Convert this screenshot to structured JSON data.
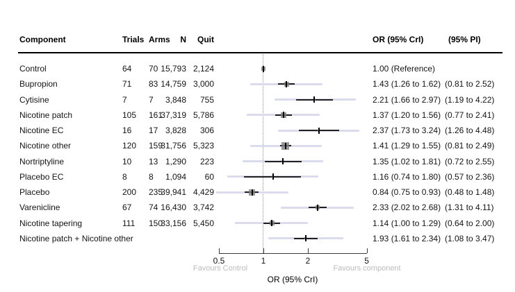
{
  "table": {
    "headers": {
      "component": "Component",
      "trials": "Trials",
      "arms": "Arms",
      "n": "N",
      "quit": "Quit",
      "or": "OR (95% CrI)",
      "pi": "(95% PI)"
    }
  },
  "chart_data": {
    "type": "forest",
    "x_scale": "log",
    "x_ticks": [
      0.5,
      1,
      2,
      5
    ],
    "reference_line": 1,
    "xlabel": "OR (95% CrI)",
    "favours_left": "Favours Control",
    "favours_right": "Favours component",
    "rows": [
      {
        "component": "Control",
        "trials": "64",
        "arms": "70",
        "n": "15,793",
        "quit": "2,124",
        "or_text": "1.00 (Reference)",
        "pi_text": "",
        "or": 1.0,
        "ref": true,
        "marker_size": 6
      },
      {
        "component": "Bupropion",
        "trials": "71",
        "arms": "83",
        "n": "14,759",
        "quit": "3,000",
        "or_text": "1.43 (1.26 to 1.62)",
        "pi_text": "(0.81 to 2.52)",
        "or": 1.43,
        "cri": [
          1.26,
          1.62
        ],
        "pi": [
          0.81,
          2.52
        ],
        "marker_size": 7
      },
      {
        "component": "Cytisine",
        "trials": "7",
        "arms": "7",
        "n": "3,848",
        "quit": "755",
        "or_text": "2.21 (1.66 to 2.97)",
        "pi_text": "(1.19 to 4.22)",
        "or": 2.21,
        "cri": [
          1.66,
          2.97
        ],
        "pi": [
          1.19,
          4.22
        ],
        "marker_size": 3
      },
      {
        "component": "Nicotine patch",
        "trials": "105",
        "arms": "161",
        "n": "37,319",
        "quit": "5,786",
        "or_text": "1.37 (1.20 to 1.56)",
        "pi_text": "(0.77 to 2.41)",
        "or": 1.37,
        "cri": [
          1.2,
          1.56
        ],
        "pi": [
          0.77,
          2.41
        ],
        "marker_size": 8
      },
      {
        "component": "Nicotine EC",
        "trials": "16",
        "arms": "17",
        "n": "3,828",
        "quit": "306",
        "or_text": "2.37 (1.73 to 3.24)",
        "pi_text": "(1.26 to 4.48)",
        "or": 2.37,
        "cri": [
          1.73,
          3.24
        ],
        "pi": [
          1.26,
          4.48
        ],
        "marker_size": 3
      },
      {
        "component": "Nicotine other",
        "trials": "120",
        "arms": "159",
        "n": "31,756",
        "quit": "5,323",
        "or_text": "1.41 (1.29 to 1.55)",
        "pi_text": "(0.81 to 2.49)",
        "or": 1.41,
        "cri": [
          1.29,
          1.55
        ],
        "pi": [
          0.81,
          2.49
        ],
        "marker_size": 11
      },
      {
        "component": "Nortriptyline",
        "trials": "10",
        "arms": "13",
        "n": "1,290",
        "quit": "223",
        "or_text": "1.35 (1.02 to 1.81)",
        "pi_text": "(0.72 to 2.55)",
        "or": 1.35,
        "cri": [
          1.02,
          1.81
        ],
        "pi": [
          0.72,
          2.55
        ],
        "marker_size": 3
      },
      {
        "component": "Placebo EC",
        "trials": "8",
        "arms": "8",
        "n": "1,094",
        "quit": "60",
        "or_text": "1.16 (0.74 to 1.80)",
        "pi_text": "(0.57 to 2.36)",
        "or": 1.16,
        "cri": [
          0.74,
          1.8
        ],
        "pi": [
          0.57,
          2.36
        ],
        "marker_size": 3
      },
      {
        "component": "Placebo",
        "trials": "200",
        "arms": "235",
        "n": "39,941",
        "quit": "4,429",
        "or_text": "0.84 (0.75 to 0.93)",
        "pi_text": "(0.48 to 1.48)",
        "or": 0.84,
        "cri": [
          0.75,
          0.93
        ],
        "pi": [
          0.48,
          1.48
        ],
        "marker_size": 9
      },
      {
        "component": "Varenicline",
        "trials": "67",
        "arms": "74",
        "n": "16,430",
        "quit": "3,742",
        "or_text": "2.33 (2.02 to 2.68)",
        "pi_text": "(1.31 to 4.11)",
        "or": 2.33,
        "cri": [
          2.02,
          2.68
        ],
        "pi": [
          1.31,
          4.11
        ],
        "marker_size": 6
      },
      {
        "component": "Nicotine tapering",
        "trials": "111",
        "arms": "150",
        "n": "33,156",
        "quit": "5,450",
        "or_text": "1.14 (1.00 to 1.29)",
        "pi_text": "(0.64 to 2.00)",
        "or": 1.14,
        "cri": [
          1.0,
          1.29
        ],
        "pi": [
          0.64,
          2.0
        ],
        "marker_size": 7
      },
      {
        "component": "Nicotine patch + Nicotine other",
        "trials": "",
        "arms": "",
        "n": "",
        "quit": "",
        "or_text": "1.93 (1.61 to 2.34)",
        "pi_text": "(1.08 to 3.47)",
        "or": 1.93,
        "cri": [
          1.61,
          2.34
        ],
        "pi": [
          1.08,
          3.47
        ],
        "marker_size": 3
      }
    ]
  },
  "colors": {
    "pi_line": "#dadcee",
    "cri_line": "#1f1f1f",
    "marker": "#7f7f7f",
    "marker_tick": "#000000",
    "reference_dotted": "#8f8f8f",
    "favours_text": "#bcbcbc"
  }
}
